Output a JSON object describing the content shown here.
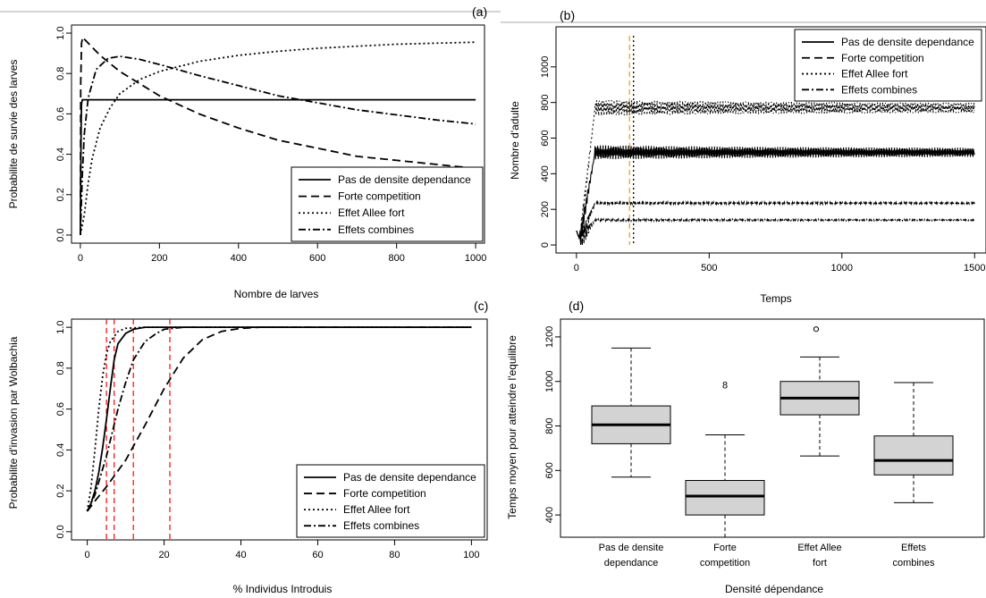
{
  "chart_data": [
    {
      "panel": "(a)",
      "type": "line",
      "xlabel": "Nombre de larves",
      "ylabel": "Probabilite de survie des larves",
      "xlim": [
        0,
        1000
      ],
      "ylim": [
        0,
        1.0
      ],
      "xticks": [
        0,
        200,
        400,
        600,
        800,
        1000
      ],
      "yticks": [
        0.0,
        0.2,
        0.4,
        0.6,
        0.8,
        1.0
      ],
      "legend_position": "bottom-right",
      "series": [
        {
          "name": "Pas de densite dependance",
          "dash": "solid",
          "x": [
            0,
            1,
            2,
            3,
            5,
            8,
            10,
            50,
            200,
            500,
            1000
          ],
          "y": [
            0.0,
            0.3,
            0.55,
            0.65,
            0.67,
            0.67,
            0.67,
            0.67,
            0.67,
            0.67,
            0.67
          ]
        },
        {
          "name": "Forte competition",
          "dash": "longdash",
          "x": [
            0,
            1,
            3,
            6,
            10,
            20,
            50,
            100,
            200,
            300,
            400,
            500,
            600,
            700,
            800,
            900,
            1000
          ],
          "y": [
            0.0,
            0.75,
            0.95,
            0.98,
            0.97,
            0.95,
            0.89,
            0.81,
            0.69,
            0.6,
            0.53,
            0.47,
            0.43,
            0.39,
            0.37,
            0.35,
            0.33
          ]
        },
        {
          "name": "Effet Allee fort",
          "dash": "dotted",
          "x": [
            0,
            10,
            20,
            30,
            50,
            75,
            100,
            150,
            200,
            300,
            400,
            500,
            600,
            700,
            800,
            900,
            1000
          ],
          "y": [
            0.0,
            0.1,
            0.26,
            0.38,
            0.53,
            0.63,
            0.7,
            0.77,
            0.81,
            0.86,
            0.89,
            0.91,
            0.925,
            0.935,
            0.945,
            0.95,
            0.955
          ]
        },
        {
          "name": "Effets combines",
          "dash": "dotdash",
          "x": [
            0,
            5,
            10,
            20,
            40,
            70,
            100,
            150,
            200,
            300,
            400,
            500,
            600,
            700,
            800,
            900,
            1000
          ],
          "y": [
            0.0,
            0.3,
            0.5,
            0.68,
            0.82,
            0.875,
            0.885,
            0.87,
            0.845,
            0.79,
            0.74,
            0.69,
            0.655,
            0.62,
            0.595,
            0.57,
            0.55
          ]
        }
      ]
    },
    {
      "panel": "(b)",
      "type": "line",
      "xlabel": "Temps",
      "ylabel": "Nombre d'adulte",
      "xlim": [
        0,
        1500
      ],
      "ylim": [
        0,
        1200
      ],
      "xticks": [
        0,
        500,
        1000,
        1500
      ],
      "yticks": [
        0,
        200,
        400,
        600,
        800,
        1000
      ],
      "legend_position": "top-right",
      "vlines": [
        {
          "x": 200,
          "color": "#f0a020",
          "dash": "dashed"
        },
        {
          "x": 215,
          "color": "#000000",
          "dash": "dotted"
        }
      ],
      "series": [
        {
          "name": "Pas de densite dependance",
          "dash": "solid",
          "equilibrium": 520,
          "oscillation": 40
        },
        {
          "name": "Forte competition",
          "dash": "longdash",
          "equilibrium": 235,
          "oscillation": 8
        },
        {
          "name": "Effet Allee fort",
          "dash": "dotted",
          "equilibrium": 770,
          "oscillation": 45
        },
        {
          "name": "Effets combines",
          "dash": "dotdash",
          "equilibrium": 140,
          "oscillation": 6
        }
      ]
    },
    {
      "panel": "(c)",
      "type": "line",
      "xlabel": "% Individus Introduis",
      "ylabel": "Probabilite d'invasion par Wolbachia",
      "xlim": [
        0,
        100
      ],
      "ylim": [
        0,
        1.0
      ],
      "xticks": [
        0,
        20,
        40,
        60,
        80,
        100
      ],
      "yticks": [
        0.0,
        0.2,
        0.4,
        0.6,
        0.8,
        1.0
      ],
      "legend_position": "bottom-right",
      "vlines": [
        {
          "x": 5,
          "color": "#ff0000",
          "dash": "dashed"
        },
        {
          "x": 7,
          "color": "#ff0000",
          "dash": "dashed"
        },
        {
          "x": 12,
          "color": "#ff0000",
          "dash": "dashed"
        },
        {
          "x": 21.5,
          "color": "#ff0000",
          "dash": "dashed"
        }
      ],
      "series": [
        {
          "name": "Pas de densite dependance",
          "dash": "solid",
          "x": [
            0,
            1,
            2,
            3,
            4,
            5,
            6,
            7,
            8,
            10,
            12,
            15,
            20,
            30,
            100
          ],
          "y": [
            0.1,
            0.14,
            0.2,
            0.29,
            0.41,
            0.55,
            0.7,
            0.84,
            0.92,
            0.97,
            0.99,
            1.0,
            1.0,
            1.0,
            1.0
          ]
        },
        {
          "name": "Forte competition",
          "dash": "longdash",
          "x": [
            0,
            2,
            5,
            10,
            15,
            20,
            25,
            30,
            35,
            40,
            45,
            100
          ],
          "y": [
            0.1,
            0.15,
            0.22,
            0.35,
            0.52,
            0.7,
            0.85,
            0.94,
            0.98,
            0.995,
            1.0,
            1.0
          ]
        },
        {
          "name": "Effet Allee fort",
          "dash": "dotted",
          "x": [
            0,
            1,
            2,
            3,
            4,
            5,
            6,
            8,
            10,
            15,
            100
          ],
          "y": [
            0.1,
            0.22,
            0.4,
            0.6,
            0.76,
            0.87,
            0.93,
            0.98,
            0.995,
            1.0,
            1.0
          ]
        },
        {
          "name": "Effets combines",
          "dash": "dotdash",
          "x": [
            0,
            2,
            5,
            8,
            10,
            12,
            15,
            18,
            20,
            25,
            30,
            100
          ],
          "y": [
            0.1,
            0.18,
            0.37,
            0.6,
            0.73,
            0.84,
            0.93,
            0.97,
            0.99,
            1.0,
            1.0,
            1.0
          ]
        }
      ]
    },
    {
      "panel": "(d)",
      "type": "boxplot",
      "xlabel": "Densité dépendance",
      "ylabel": "Temps moyen pour atteindre l'equilibre",
      "ylim": [
        300,
        1280
      ],
      "yticks": [
        400,
        600,
        800,
        1000,
        1200
      ],
      "categories": [
        "Pas de densite dependance",
        "Forte competition",
        "Effet Allee fort",
        "Effets combines"
      ],
      "box_fill": "#d3d3d3",
      "boxes": [
        {
          "min": 570,
          "q1": 720,
          "median": 805,
          "q3": 890,
          "max": 1150,
          "outliers": []
        },
        {
          "min": 300,
          "q1": 400,
          "median": 485,
          "q3": 555,
          "max": 760,
          "outliers": [
            985
          ]
        },
        {
          "min": 665,
          "q1": 850,
          "median": 925,
          "q3": 1000,
          "max": 1110,
          "outliers": [
            1235
          ]
        },
        {
          "min": 455,
          "q1": 580,
          "median": 645,
          "q3": 755,
          "max": 995,
          "outliers": []
        }
      ]
    }
  ],
  "labels": {
    "panel_a": "(a)",
    "panel_b": "(b)",
    "panel_c": "(c)",
    "panel_d": "(d)",
    "xlabel_a": "Nombre de larves",
    "ylabel_a": "Probabilite de survie des larves",
    "xlabel_b": "Temps",
    "ylabel_b": "Nombre d'adulte",
    "xlabel_c": "% Individus Introduis",
    "ylabel_c": "Probabilite d'invasion par Wolbachia",
    "xlabel_d": "Densité dépendance",
    "ylabel_d": "Temps moyen pour atteindre l'equilibre",
    "cat_d_0": [
      "Pas de densite",
      "dependance"
    ],
    "cat_d_1": [
      "Forte",
      "competition"
    ],
    "cat_d_2": [
      "Effet Allee",
      "fort"
    ],
    "cat_d_3": [
      "Effets",
      "combines"
    ],
    "outlier_label": "8"
  },
  "legend_entries": [
    "Pas de densite dependance",
    "Forte competition",
    "Effet Allee fort",
    "Effets combines"
  ]
}
